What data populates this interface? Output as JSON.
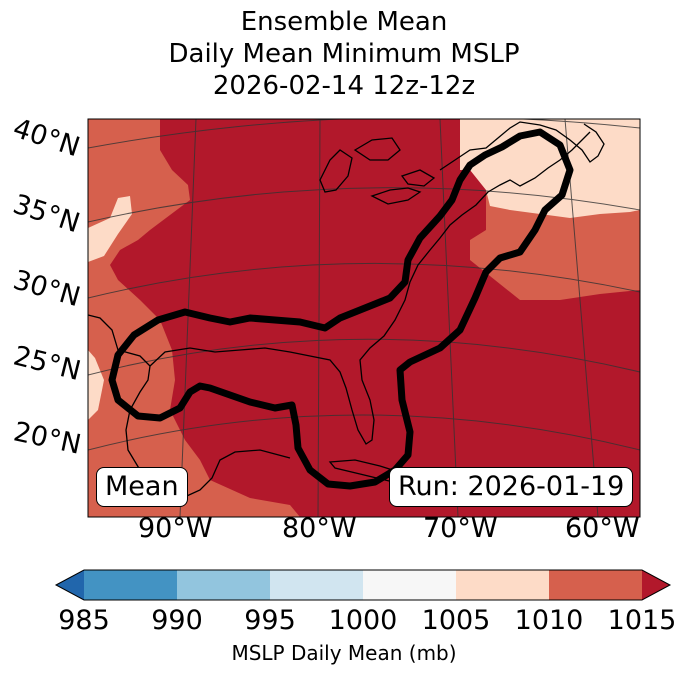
{
  "title": {
    "line1": "Ensemble Mean",
    "line2": "Daily Mean Minimum MSLP",
    "line3": "2026-02-14 12z-12z"
  },
  "lat_labels": [
    "40°N",
    "35°N",
    "30°N",
    "25°N",
    "20°N"
  ],
  "lon_labels": [
    "90°W",
    "80°W",
    "70°W",
    "60°W"
  ],
  "badges": {
    "left": "Mean",
    "right": "Run: 2026-01-19"
  },
  "colorbar": {
    "ticks": [
      "985",
      "990",
      "995",
      "1000",
      "1005",
      "1010",
      "1015"
    ],
    "label": "MSLP Daily Mean (mb)",
    "bins": [
      {
        "range": "985-990",
        "color": "#4393c3"
      },
      {
        "range": "990-995",
        "color": "#92c5de"
      },
      {
        "range": "995-1000",
        "color": "#d1e5f0"
      },
      {
        "range": "1000-1005",
        "color": "#f7f7f7"
      },
      {
        "range": "1005-1010",
        "color": "#fddbc7"
      },
      {
        "range": "1010-1015",
        "color": "#d6604d"
      }
    ],
    "under_color": "#2166ac",
    "over_color": "#b2182b"
  },
  "map_colors": {
    "high": "#b2182b",
    "mid": "#d6604d",
    "low": "#fddbc7"
  }
}
